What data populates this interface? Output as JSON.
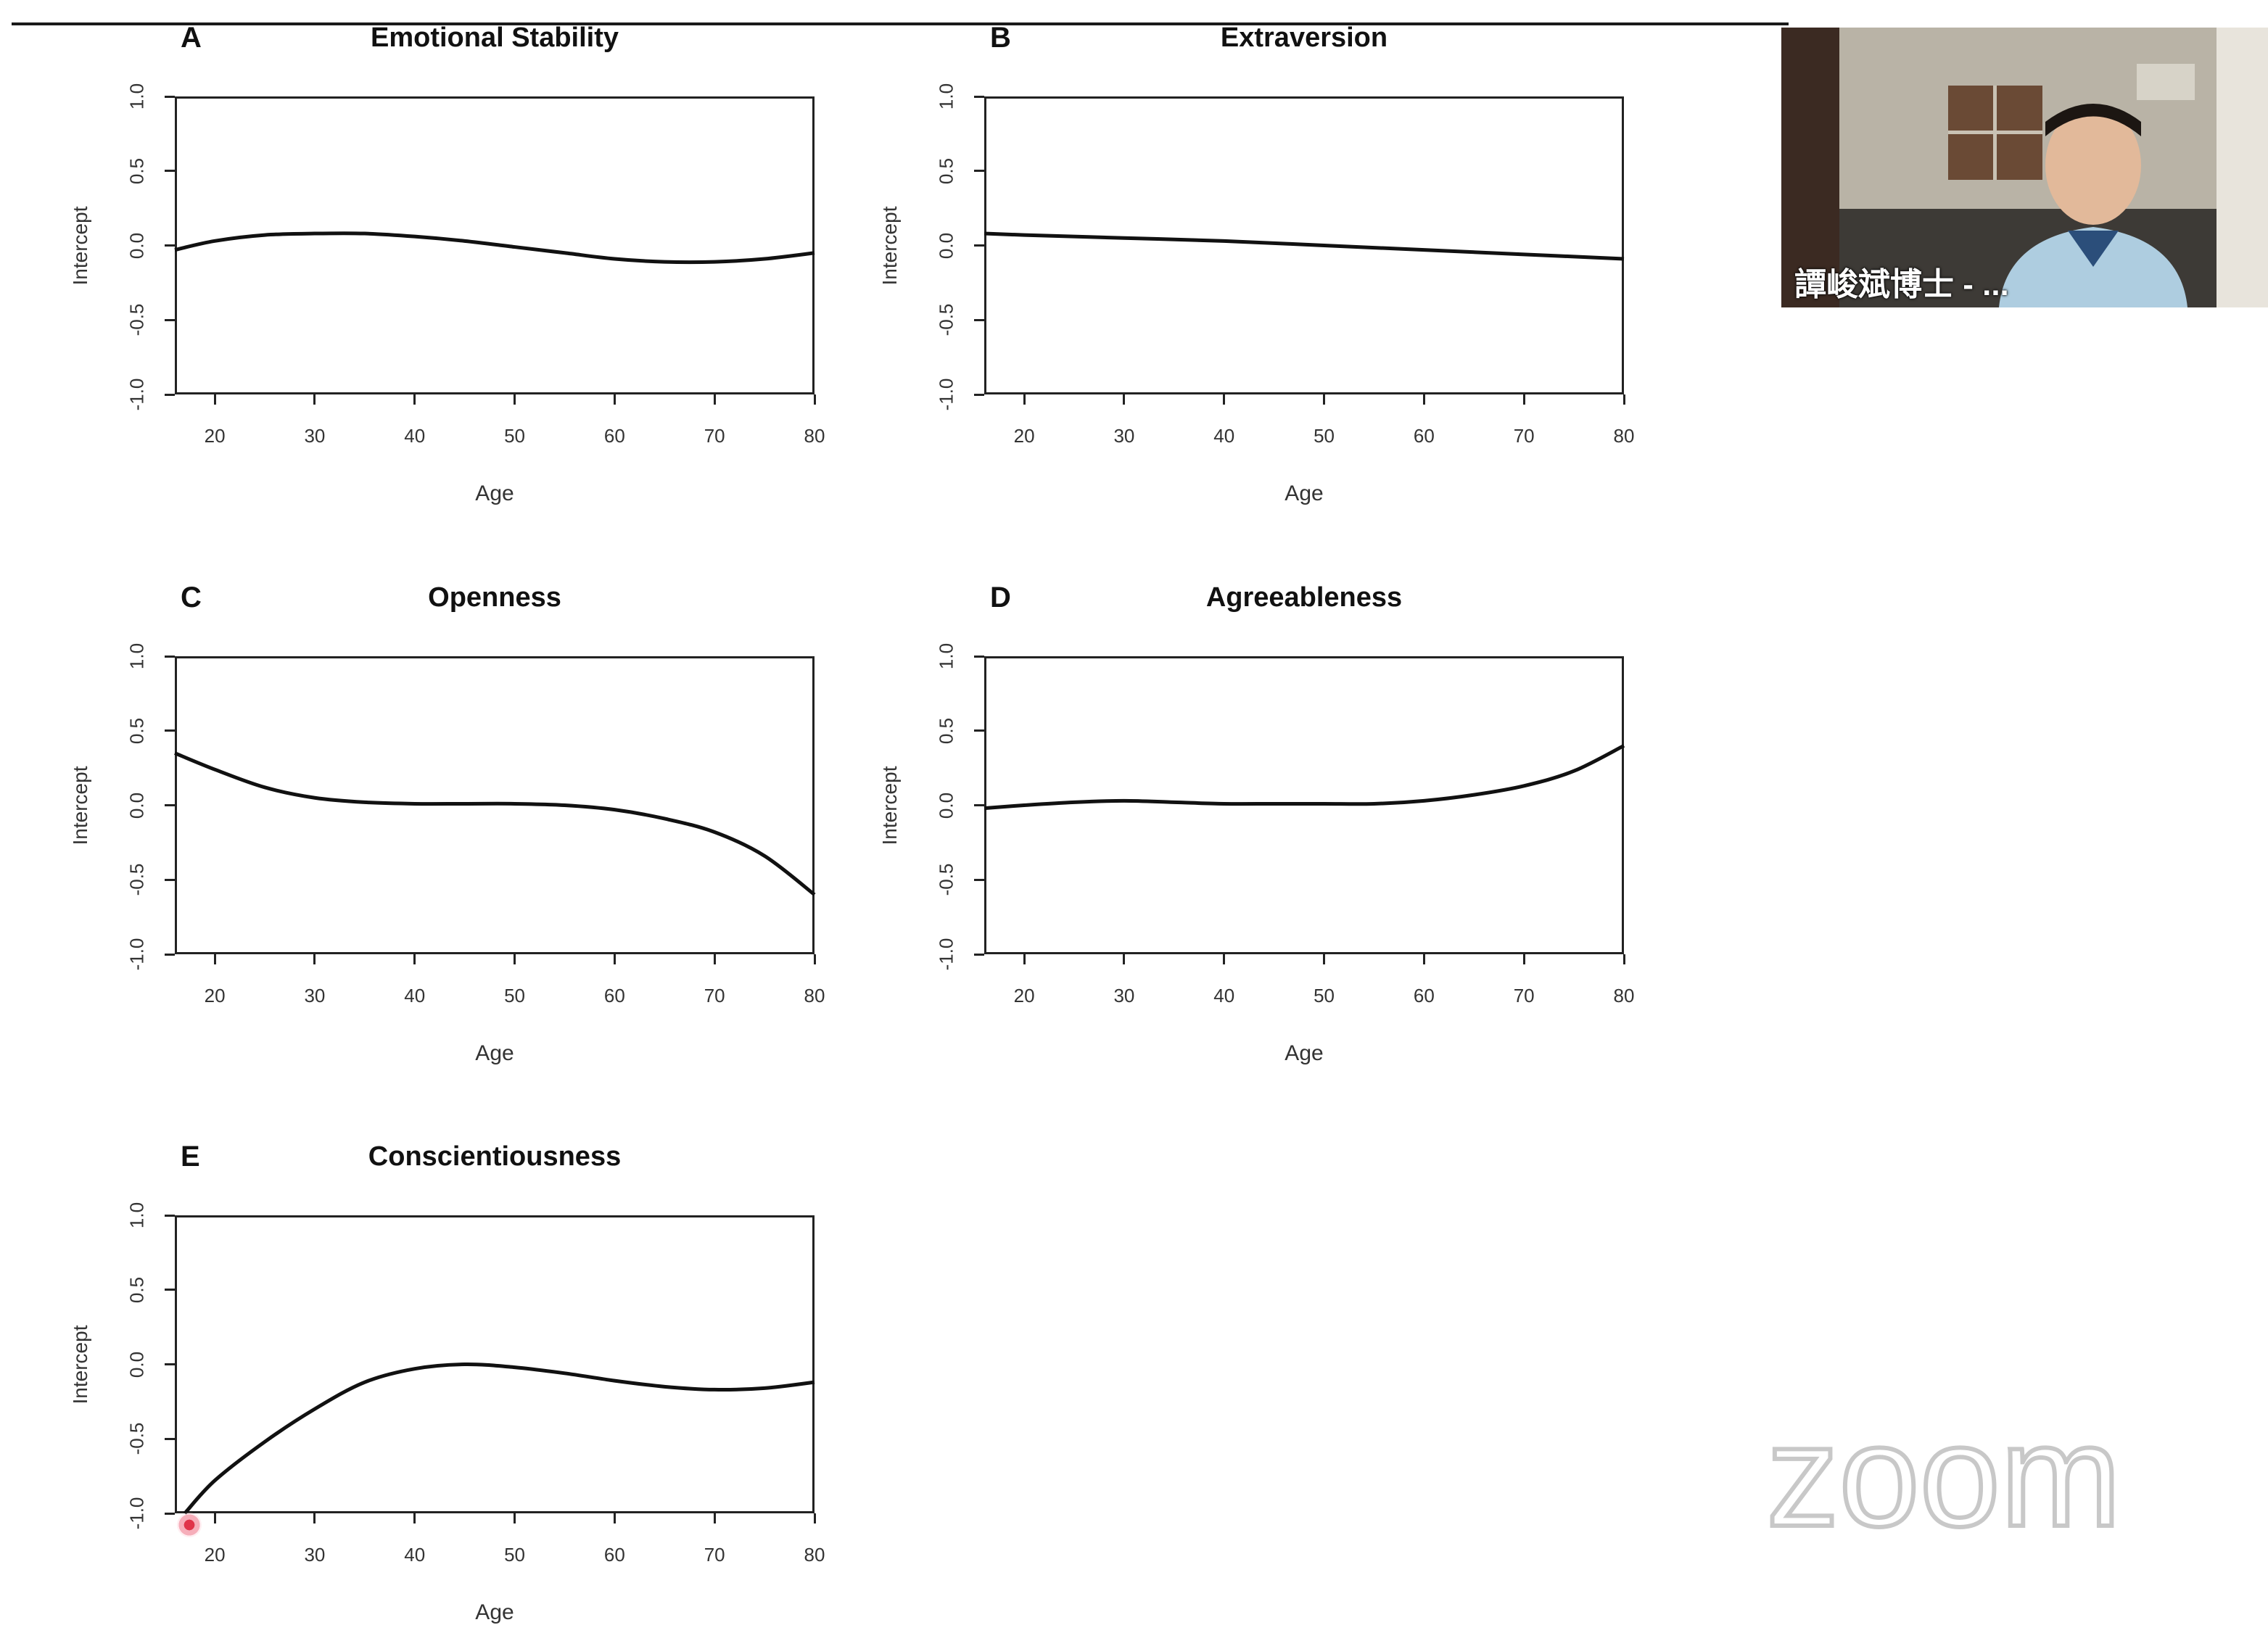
{
  "slide": {
    "panels": [
      {
        "letter": "A",
        "title": "Emotional Stability",
        "xlabel": "Age",
        "ylabel": "Intercept",
        "xticks": [
          "20",
          "30",
          "40",
          "50",
          "60",
          "70",
          "80"
        ],
        "yticks": [
          "-1.0",
          "-0.5",
          "0.0",
          "0.5",
          "1.0"
        ]
      },
      {
        "letter": "B",
        "title": "Extraversion",
        "xlabel": "Age",
        "ylabel": "Intercept",
        "xticks": [
          "20",
          "30",
          "40",
          "50",
          "60",
          "70",
          "80"
        ],
        "yticks": [
          "-1.0",
          "-0.5",
          "0.0",
          "0.5",
          "1.0"
        ]
      },
      {
        "letter": "C",
        "title": "Openness",
        "xlabel": "Age",
        "ylabel": "Intercept",
        "xticks": [
          "20",
          "30",
          "40",
          "50",
          "60",
          "70",
          "80"
        ],
        "yticks": [
          "-1.0",
          "-0.5",
          "0.0",
          "0.5",
          "1.0"
        ]
      },
      {
        "letter": "D",
        "title": "Agreeableness",
        "xlabel": "Age",
        "ylabel": "Intercept",
        "xticks": [
          "20",
          "30",
          "40",
          "50",
          "60",
          "70",
          "80"
        ],
        "yticks": [
          "-1.0",
          "-0.5",
          "0.0",
          "0.5",
          "1.0"
        ]
      },
      {
        "letter": "E",
        "title": "Conscientiousness",
        "xlabel": "Age",
        "ylabel": "Intercept",
        "xticks": [
          "20",
          "30",
          "40",
          "50",
          "60",
          "70",
          "80"
        ],
        "yticks": [
          "-1.0",
          "-0.5",
          "0.0",
          "0.5",
          "1.0"
        ]
      }
    ]
  },
  "video": {
    "participant_name": "譚峻斌博士 - ..."
  },
  "watermark": {
    "text": "zoom"
  },
  "colors": {
    "curve": "#111111",
    "axis": "#222222",
    "pointer": "#e0344a"
  },
  "chart_data": [
    {
      "type": "line",
      "title": "Emotional Stability",
      "xlabel": "Age",
      "ylabel": "Intercept",
      "xlim": [
        16,
        80
      ],
      "ylim": [
        -1.0,
        1.0
      ],
      "x": [
        16,
        20,
        25,
        30,
        35,
        40,
        45,
        50,
        55,
        60,
        65,
        70,
        75,
        80
      ],
      "y": [
        -0.03,
        0.03,
        0.07,
        0.08,
        0.08,
        0.06,
        0.03,
        -0.01,
        -0.05,
        -0.09,
        -0.11,
        -0.11,
        -0.09,
        -0.05
      ]
    },
    {
      "type": "line",
      "title": "Extraversion",
      "xlabel": "Age",
      "ylabel": "Intercept",
      "xlim": [
        16,
        80
      ],
      "ylim": [
        -1.0,
        1.0
      ],
      "x": [
        16,
        20,
        30,
        40,
        50,
        60,
        70,
        80
      ],
      "y": [
        0.08,
        0.07,
        0.05,
        0.03,
        0.0,
        -0.03,
        -0.06,
        -0.09
      ]
    },
    {
      "type": "line",
      "title": "Openness",
      "xlabel": "Age",
      "ylabel": "Intercept",
      "xlim": [
        16,
        80
      ],
      "ylim": [
        -1.0,
        1.0
      ],
      "x": [
        16,
        20,
        25,
        30,
        35,
        40,
        45,
        50,
        55,
        60,
        65,
        70,
        75,
        80
      ],
      "y": [
        0.35,
        0.24,
        0.12,
        0.05,
        0.02,
        0.01,
        0.01,
        0.01,
        0.0,
        -0.03,
        -0.09,
        -0.18,
        -0.34,
        -0.6
      ]
    },
    {
      "type": "line",
      "title": "Agreeableness",
      "xlabel": "Age",
      "ylabel": "Intercept",
      "xlim": [
        16,
        80
      ],
      "ylim": [
        -1.0,
        1.0
      ],
      "x": [
        16,
        20,
        25,
        30,
        35,
        40,
        45,
        50,
        55,
        60,
        65,
        70,
        75,
        80
      ],
      "y": [
        -0.02,
        0.0,
        0.02,
        0.03,
        0.02,
        0.01,
        0.01,
        0.01,
        0.01,
        0.03,
        0.07,
        0.13,
        0.23,
        0.4
      ]
    },
    {
      "type": "line",
      "title": "Conscientiousness",
      "xlabel": "Age",
      "ylabel": "Intercept",
      "xlim": [
        16,
        80
      ],
      "ylim": [
        -1.0,
        1.0
      ],
      "x": [
        17,
        20,
        25,
        30,
        35,
        40,
        45,
        50,
        55,
        60,
        65,
        70,
        75,
        80
      ],
      "y": [
        -1.0,
        -0.78,
        -0.52,
        -0.3,
        -0.12,
        -0.03,
        0.0,
        -0.02,
        -0.06,
        -0.11,
        -0.15,
        -0.17,
        -0.16,
        -0.12
      ]
    }
  ]
}
